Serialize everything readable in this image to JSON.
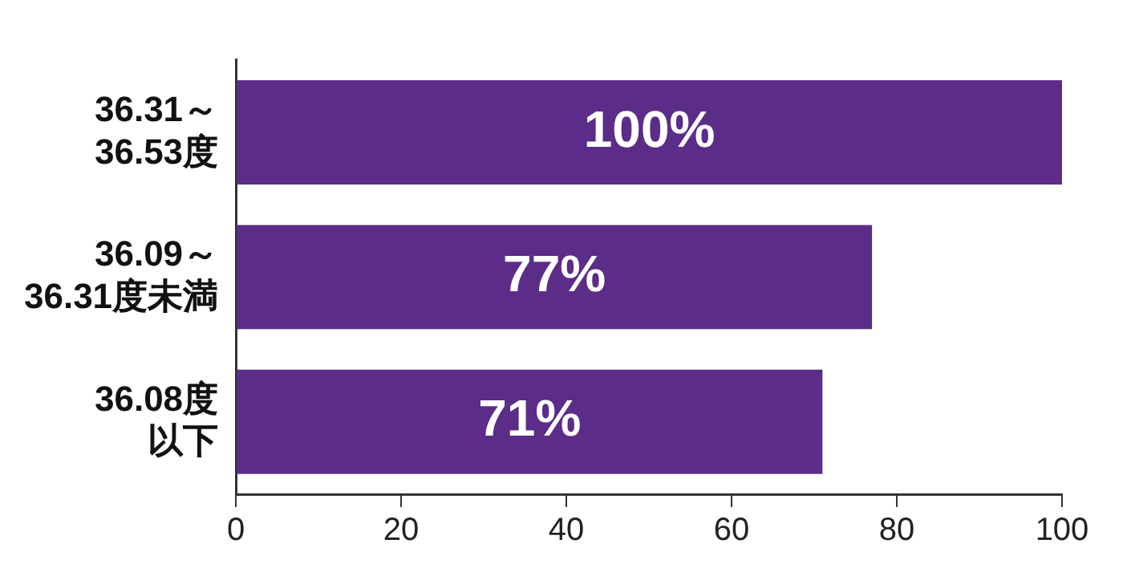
{
  "chart_data": {
    "type": "bar",
    "orientation": "horizontal",
    "categories": [
      "36.31～36.53度",
      "36.09～36.31度未満",
      "36.08度以下"
    ],
    "values": [
      100,
      77,
      71
    ],
    "color": "#5b2d88",
    "value_labels": [
      "100%",
      "77%",
      "71%"
    ],
    "xlim": [
      0,
      100
    ],
    "xticks": [
      0,
      20,
      40,
      60,
      80,
      100
    ],
    "grid": false
  }
}
